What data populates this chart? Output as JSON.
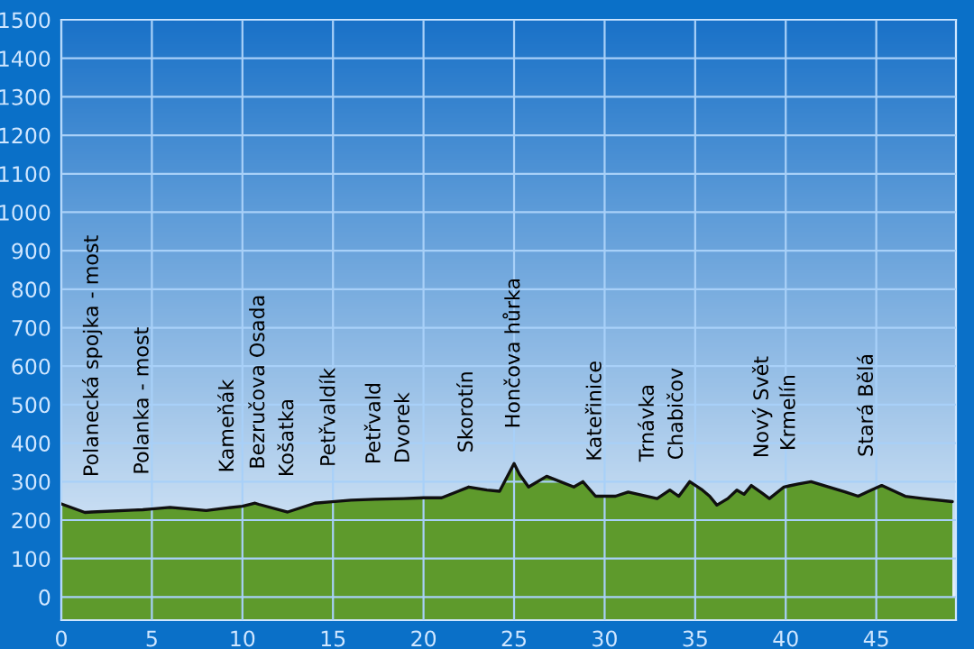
{
  "chart_data": {
    "type": "area",
    "xlim": [
      0,
      49.4
    ],
    "ylim": [
      -60,
      1500
    ],
    "xticks": [
      0,
      5,
      10,
      15,
      20,
      25,
      30,
      35,
      40,
      45
    ],
    "yticks": [
      0,
      100,
      200,
      300,
      400,
      500,
      600,
      700,
      800,
      900,
      1000,
      1100,
      1200,
      1300,
      1400,
      1500
    ],
    "grid": true,
    "bands": [
      {
        "axis": "y",
        "from": -60,
        "to": 0,
        "color": "#5e9a2c"
      }
    ],
    "series": [
      {
        "color": "#5e9a2c",
        "x": [
          0,
          1.3,
          1.7,
          4,
          4.5,
          5,
          6,
          8,
          9.2,
          10,
          10.7,
          10.9,
          12.5,
          14,
          14.8,
          16,
          17.3,
          18.9,
          20,
          21,
          22.4,
          22.5,
          23.5,
          24.2,
          25.0,
          25.3,
          25.8,
          26.8,
          28.3,
          28.8,
          29.5,
          30.6,
          31.3,
          32.4,
          32.9,
          33.6,
          34.0,
          34.1,
          34.7,
          35.4,
          35.8,
          36.2,
          36.8,
          37.3,
          37.7,
          38.1,
          38.7,
          39.1,
          39.9,
          40.2,
          40.7,
          41.4,
          43.3,
          44.0,
          44.5,
          45.3,
          46.6,
          47.6,
          49.2
        ],
        "values": [
          242,
          220,
          221,
          226,
          227,
          229,
          233,
          225,
          232,
          236,
          244,
          241,
          221,
          244,
          247,
          252,
          254,
          256,
          258,
          258,
          284,
          286,
          278,
          275,
          347,
          319,
          286,
          314,
          286,
          300,
          262,
          262,
          273,
          261,
          256,
          278,
          265,
          262,
          300,
          278,
          262,
          239,
          256,
          278,
          267,
          290,
          270,
          256,
          286,
          289,
          294,
          300,
          273,
          262,
          273,
          290,
          262,
          256,
          248
        ]
      }
    ],
    "annotations": [
      {
        "text": "Polanecká spojka - most",
        "x": 1.7,
        "y": 221
      },
      {
        "text": "Polanka - most",
        "x": 4.5,
        "y": 227
      },
      {
        "text": "Kameňák",
        "x": 9.2,
        "y": 232
      },
      {
        "text": "Bezručova Osada",
        "x": 10.9,
        "y": 241
      },
      {
        "text": "Košatka",
        "x": 12.5,
        "y": 221
      },
      {
        "text": "Petřvaldík",
        "x": 14.8,
        "y": 247
      },
      {
        "text": "Petřvald",
        "x": 17.3,
        "y": 254
      },
      {
        "text": "Dvorek",
        "x": 18.9,
        "y": 256
      },
      {
        "text": "Skorotín",
        "x": 22.4,
        "y": 284
      },
      {
        "text": "Hončova hůrka",
        "x": 25.0,
        "y": 347
      },
      {
        "text": "Kateřinice",
        "x": 29.5,
        "y": 262
      },
      {
        "text": "Trnávka",
        "x": 32.4,
        "y": 261
      },
      {
        "text": "Chabičov",
        "x": 34.0,
        "y": 265
      },
      {
        "text": "Nový Svět",
        "x": 38.7,
        "y": 270
      },
      {
        "text": "Krmelín",
        "x": 40.2,
        "y": 289
      },
      {
        "text": "Stará Bělá",
        "x": 44.5,
        "y": 273
      }
    ]
  }
}
